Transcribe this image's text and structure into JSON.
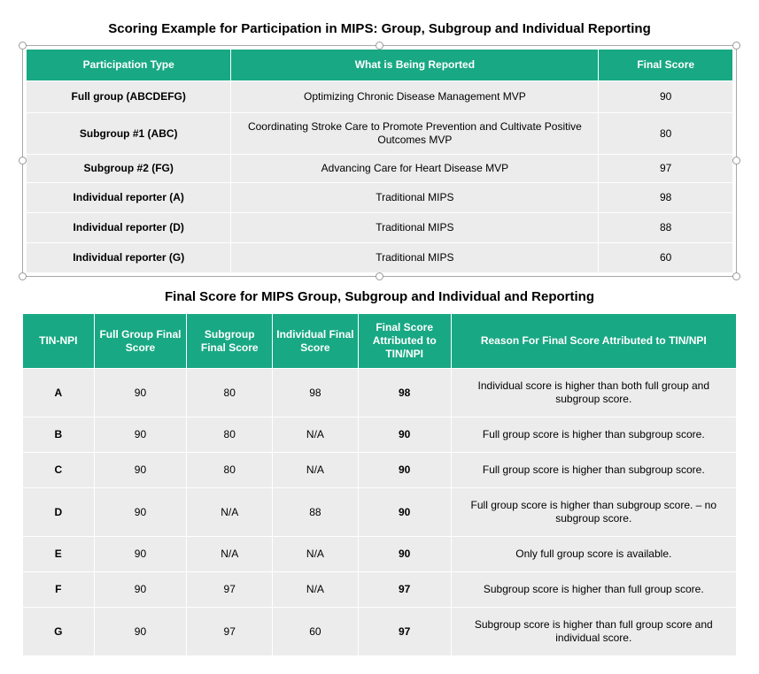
{
  "colors": {
    "header_bg": "#18a884",
    "header_text": "#ffffff",
    "cell_bg": "#ececec",
    "cell_text": "#000000",
    "border": "#ffffff",
    "selection_border": "#a8a8a8"
  },
  "typography": {
    "title_fontsize_pt": 11,
    "title_weight": "bold",
    "th_fontsize_pt": 9,
    "td_fontsize_pt": 9
  },
  "table1": {
    "title": "Scoring Example for Participation in MIPS: Group, Subgroup and Individual Reporting",
    "columns": [
      "Participation Type",
      "What is Being Reported",
      "Final Score"
    ],
    "col_widths_pct": [
      29,
      52,
      19
    ],
    "rows": [
      {
        "type": "Full group (ABCDEFG)",
        "report": "Optimizing Chronic Disease Management MVP",
        "score": "90"
      },
      {
        "type": "Subgroup #1 (ABC)",
        "report": "Coordinating Stroke Care to Promote Prevention and Cultivate Positive Outcomes MVP",
        "score": "80"
      },
      {
        "type": "Subgroup #2 (FG)",
        "report": "Advancing Care for Heart Disease MVP",
        "score": "97"
      },
      {
        "type": "Individual reporter (A)",
        "report": "Traditional MIPS",
        "score": "98"
      },
      {
        "type": "Individual reporter (D)",
        "report": "Traditional MIPS",
        "score": "88"
      },
      {
        "type": "Individual reporter (G)",
        "report": "Traditional MIPS",
        "score": "60"
      }
    ]
  },
  "table2": {
    "title": "Final Score for MIPS Group, Subgroup and Individual and Reporting",
    "columns": [
      "TIN-NPI",
      "Full Group Final Score",
      "Subgroup Final Score",
      "Individual Final Score",
      "Final Score Attributed to TIN/NPI",
      "Reason For Final Score Attributed to TIN/NPI"
    ],
    "col_widths_pct": [
      10,
      13,
      12,
      12,
      13,
      40
    ],
    "rows": [
      {
        "id": "A",
        "full": "90",
        "sub": "80",
        "ind": "98",
        "final": "98",
        "reason": "Individual score is higher than both full group and subgroup score."
      },
      {
        "id": "B",
        "full": "90",
        "sub": "80",
        "ind": "N/A",
        "final": "90",
        "reason": "Full group score is higher than subgroup score."
      },
      {
        "id": "C",
        "full": "90",
        "sub": "80",
        "ind": "N/A",
        "final": "90",
        "reason": "Full group score is higher than subgroup score."
      },
      {
        "id": "D",
        "full": "90",
        "sub": "N/A",
        "ind": "88",
        "final": "90",
        "reason": "Full group score is higher than subgroup score. – no subgroup score."
      },
      {
        "id": "E",
        "full": "90",
        "sub": "N/A",
        "ind": "N/A",
        "final": "90",
        "reason": "Only full group score is available."
      },
      {
        "id": "F",
        "full": "90",
        "sub": "97",
        "ind": "N/A",
        "final": "97",
        "reason": "Subgroup score is higher than full group score."
      },
      {
        "id": "G",
        "full": "90",
        "sub": "97",
        "ind": "60",
        "final": "97",
        "reason": "Subgroup score is higher than full group score and individual score."
      }
    ]
  }
}
